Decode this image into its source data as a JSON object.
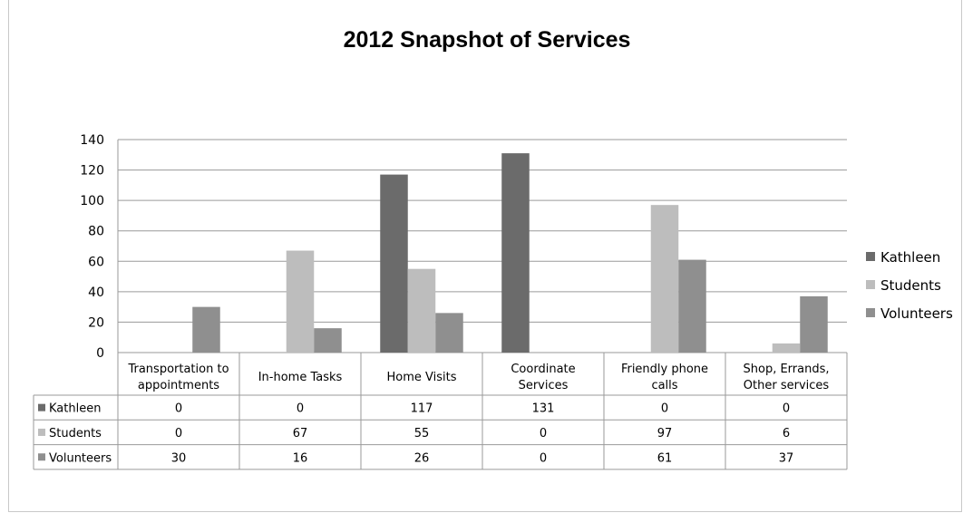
{
  "chart_data": {
    "type": "bar",
    "title": "2012 Snapshot of Services",
    "categories": [
      [
        "Transportation to",
        "appointments"
      ],
      [
        "In-home Tasks"
      ],
      [
        "Home Visits"
      ],
      [
        "Coordinate",
        "Services"
      ],
      [
        "Friendly phone",
        "calls"
      ],
      [
        "Shop, Errands,",
        "Other services"
      ]
    ],
    "series": [
      {
        "name": "Kathleen",
        "color": "#6b6b6b",
        "values": [
          0,
          0,
          117,
          131,
          0,
          0
        ]
      },
      {
        "name": "Students",
        "color": "#bdbdbd",
        "values": [
          0,
          67,
          55,
          0,
          97,
          6
        ]
      },
      {
        "name": "Volunteers",
        "color": "#8f8f8f",
        "values": [
          30,
          16,
          26,
          0,
          61,
          37
        ]
      }
    ],
    "ylim": [
      0,
      140
    ],
    "yticks": [
      0,
      20,
      40,
      60,
      80,
      100,
      120,
      140
    ],
    "grid": true,
    "legend_position": "right",
    "data_table": true
  }
}
